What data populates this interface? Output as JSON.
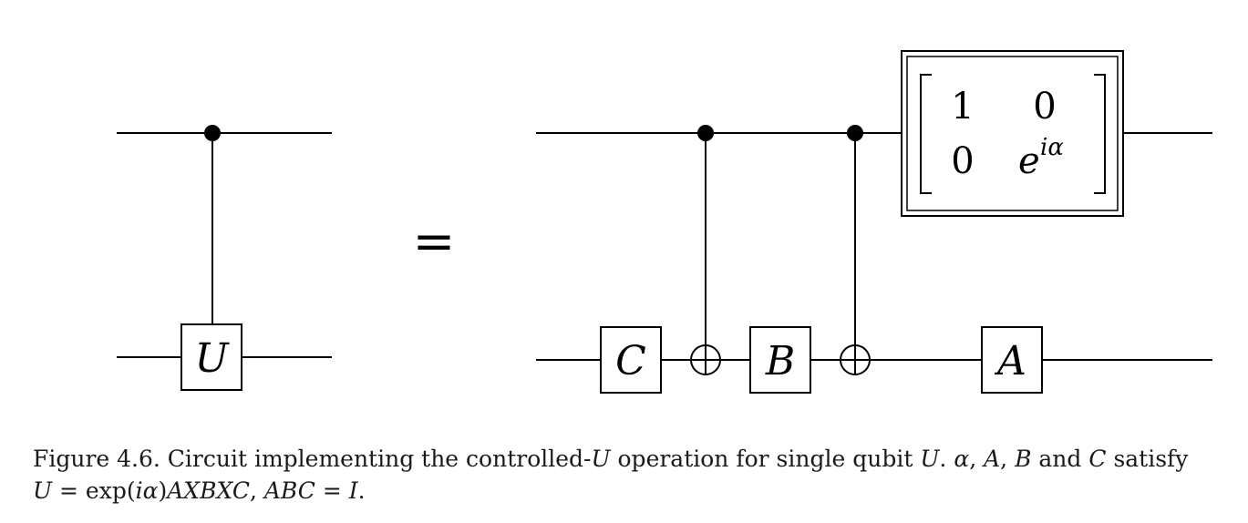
{
  "diagram": {
    "left_gate_label": "U",
    "equals": "=",
    "right_gate_labels": {
      "c": "C",
      "b": "B",
      "a": "A"
    },
    "phase_matrix": {
      "m11": "1",
      "m12": "0",
      "m21": "0",
      "m22_base": "e",
      "m22_exp": "iα"
    }
  },
  "caption": {
    "line1": {
      "prefix": "Figure 4.6. Circuit implementing the controlled-",
      "U1": "U",
      "mid1": " operation for single qubit ",
      "U2": "U",
      "mid2": ". ",
      "alpha": "α",
      "sep1": ", ",
      "A": "A",
      "sep2": ", ",
      "B": "B",
      "and": " and ",
      "C": "C",
      "end": " satisfy"
    },
    "line2": {
      "lhs": "U",
      "eq": " = exp(",
      "ia": "iα",
      "close": ")",
      "prod": "AXBXC",
      "sep": ", ",
      "abc": "ABC",
      "eq2": " = ",
      "I": "I",
      "dot": "."
    }
  }
}
